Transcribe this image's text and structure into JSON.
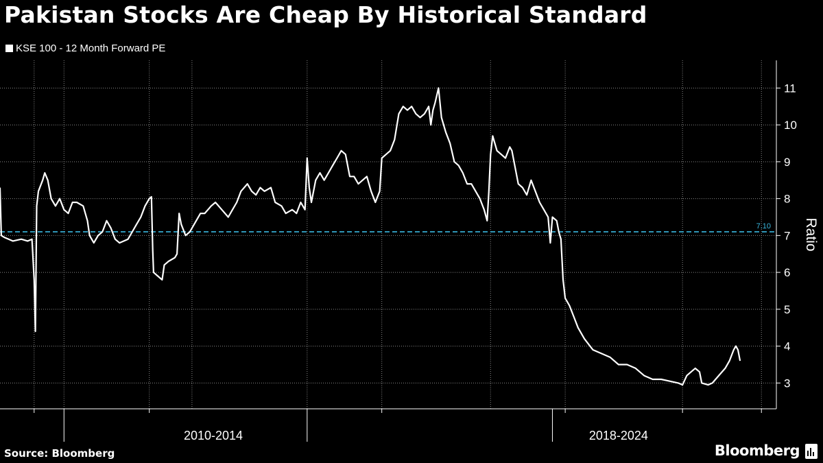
{
  "title": "Pakistan Stocks Are Cheap By Historical Standard",
  "legend_label": "KSE 100 - 12 Month Forward PE",
  "source": "Source: Bloomberg",
  "brand": "Bloomberg",
  "colors": {
    "background": "#000000",
    "line": "#ffffff",
    "reference": "#3ab8e0",
    "grid": "#8a8a8a"
  },
  "chart_data": {
    "type": "line",
    "title": "Pakistan Stocks Are Cheap By Historical Standard",
    "ylabel": "Ratio",
    "ylim": [
      2.3,
      11.75
    ],
    "yticks": [
      3,
      4,
      5,
      6,
      7,
      8,
      9,
      10,
      11
    ],
    "xlim": [
      2006.5,
      2024.7
    ],
    "x_period_labels": [
      {
        "label": "2010-2014",
        "center": 2011.5
      },
      {
        "label": "2018-2024",
        "center": 2021.0
      }
    ],
    "reference_line": {
      "value": 7.1,
      "label": "7.10"
    },
    "series": [
      {
        "name": "KSE 100 - 12 Month Forward PE",
        "points": [
          [
            2006.5,
            8.3
          ],
          [
            2006.53,
            7.0
          ],
          [
            2006.6,
            6.95
          ],
          [
            2006.8,
            6.85
          ],
          [
            2007.0,
            6.9
          ],
          [
            2007.15,
            6.85
          ],
          [
            2007.25,
            6.9
          ],
          [
            2007.3,
            5.8
          ],
          [
            2007.33,
            4.4
          ],
          [
            2007.36,
            7.8
          ],
          [
            2007.4,
            8.2
          ],
          [
            2007.5,
            8.5
          ],
          [
            2007.55,
            8.7
          ],
          [
            2007.62,
            8.5
          ],
          [
            2007.7,
            8.0
          ],
          [
            2007.8,
            7.8
          ],
          [
            2007.9,
            8.0
          ],
          [
            2008.0,
            7.7
          ],
          [
            2008.1,
            7.6
          ],
          [
            2008.2,
            7.9
          ],
          [
            2008.3,
            7.9
          ],
          [
            2008.45,
            7.8
          ],
          [
            2008.55,
            7.4
          ],
          [
            2008.6,
            7.0
          ],
          [
            2008.7,
            6.8
          ],
          [
            2008.8,
            7.0
          ],
          [
            2008.9,
            7.1
          ],
          [
            2009.0,
            7.4
          ],
          [
            2009.1,
            7.2
          ],
          [
            2009.2,
            6.9
          ],
          [
            2009.3,
            6.8
          ],
          [
            2009.5,
            6.9
          ],
          [
            2009.6,
            7.1
          ],
          [
            2009.7,
            7.3
          ],
          [
            2009.8,
            7.5
          ],
          [
            2009.9,
            7.8
          ],
          [
            2010.0,
            8.0
          ],
          [
            2010.05,
            8.05
          ],
          [
            2010.08,
            6.6
          ],
          [
            2010.1,
            6.0
          ],
          [
            2010.2,
            5.9
          ],
          [
            2010.3,
            5.8
          ],
          [
            2010.35,
            6.2
          ],
          [
            2010.45,
            6.3
          ],
          [
            2010.6,
            6.4
          ],
          [
            2010.65,
            6.5
          ],
          [
            2010.7,
            7.6
          ],
          [
            2010.75,
            7.3
          ],
          [
            2010.85,
            7.0
          ],
          [
            2010.95,
            7.1
          ],
          [
            2011.1,
            7.4
          ],
          [
            2011.2,
            7.6
          ],
          [
            2011.3,
            7.6
          ],
          [
            2011.45,
            7.8
          ],
          [
            2011.55,
            7.9
          ],
          [
            2011.7,
            7.7
          ],
          [
            2011.85,
            7.5
          ],
          [
            2011.95,
            7.7
          ],
          [
            2012.05,
            7.9
          ],
          [
            2012.15,
            8.2
          ],
          [
            2012.3,
            8.4
          ],
          [
            2012.4,
            8.2
          ],
          [
            2012.5,
            8.1
          ],
          [
            2012.6,
            8.3
          ],
          [
            2012.7,
            8.2
          ],
          [
            2012.85,
            8.3
          ],
          [
            2012.95,
            7.9
          ],
          [
            2013.1,
            7.8
          ],
          [
            2013.2,
            7.6
          ],
          [
            2013.35,
            7.7
          ],
          [
            2013.45,
            7.6
          ],
          [
            2013.55,
            7.9
          ],
          [
            2013.65,
            7.7
          ],
          [
            2013.7,
            9.1
          ],
          [
            2013.75,
            8.3
          ],
          [
            2013.8,
            7.9
          ],
          [
            2013.9,
            8.5
          ],
          [
            2014.0,
            8.7
          ],
          [
            2014.1,
            8.5
          ],
          [
            2014.2,
            8.7
          ],
          [
            2014.3,
            8.9
          ],
          [
            2014.4,
            9.1
          ],
          [
            2014.5,
            9.3
          ],
          [
            2014.6,
            9.2
          ],
          [
            2014.7,
            8.6
          ],
          [
            2014.8,
            8.6
          ],
          [
            2014.9,
            8.4
          ],
          [
            2015.0,
            8.5
          ],
          [
            2015.1,
            8.6
          ],
          [
            2015.2,
            8.2
          ],
          [
            2015.3,
            7.9
          ],
          [
            2015.4,
            8.2
          ],
          [
            2015.45,
            9.1
          ],
          [
            2015.55,
            9.2
          ],
          [
            2015.65,
            9.3
          ],
          [
            2015.75,
            9.6
          ],
          [
            2015.85,
            10.3
          ],
          [
            2015.95,
            10.5
          ],
          [
            2016.05,
            10.4
          ],
          [
            2016.15,
            10.5
          ],
          [
            2016.25,
            10.3
          ],
          [
            2016.35,
            10.2
          ],
          [
            2016.45,
            10.3
          ],
          [
            2016.55,
            10.5
          ],
          [
            2016.6,
            10.0
          ],
          [
            2016.65,
            10.4
          ],
          [
            2016.7,
            10.6
          ],
          [
            2016.78,
            11.0
          ],
          [
            2016.85,
            10.2
          ],
          [
            2016.95,
            9.8
          ],
          [
            2017.05,
            9.5
          ],
          [
            2017.15,
            9.0
          ],
          [
            2017.25,
            8.9
          ],
          [
            2017.35,
            8.7
          ],
          [
            2017.45,
            8.4
          ],
          [
            2017.55,
            8.4
          ],
          [
            2017.65,
            8.2
          ],
          [
            2017.75,
            8.0
          ],
          [
            2017.85,
            7.7
          ],
          [
            2017.92,
            7.4
          ],
          [
            2017.96,
            8.2
          ],
          [
            2018.0,
            9.2
          ],
          [
            2018.05,
            9.7
          ],
          [
            2018.15,
            9.3
          ],
          [
            2018.25,
            9.2
          ],
          [
            2018.35,
            9.1
          ],
          [
            2018.45,
            9.4
          ],
          [
            2018.5,
            9.3
          ],
          [
            2018.55,
            9.0
          ],
          [
            2018.65,
            8.4
          ],
          [
            2018.75,
            8.3
          ],
          [
            2018.85,
            8.1
          ],
          [
            2018.95,
            8.5
          ],
          [
            2019.05,
            8.2
          ],
          [
            2019.15,
            7.9
          ],
          [
            2019.25,
            7.7
          ],
          [
            2019.35,
            7.5
          ],
          [
            2019.4,
            6.8
          ],
          [
            2019.45,
            7.5
          ],
          [
            2019.55,
            7.4
          ],
          [
            2019.6,
            7.1
          ],
          [
            2019.65,
            6.9
          ],
          [
            2019.7,
            5.8
          ],
          [
            2019.75,
            5.3
          ],
          [
            2019.85,
            5.1
          ],
          [
            2019.95,
            4.8
          ],
          [
            2020.05,
            4.5
          ],
          [
            2020.2,
            4.2
          ],
          [
            2020.4,
            3.9
          ],
          [
            2020.6,
            3.8
          ],
          [
            2020.8,
            3.7
          ],
          [
            2021.0,
            3.5
          ],
          [
            2021.2,
            3.5
          ],
          [
            2021.4,
            3.4
          ],
          [
            2021.6,
            3.2
          ],
          [
            2021.8,
            3.1
          ],
          [
            2022.0,
            3.1
          ],
          [
            2022.2,
            3.05
          ],
          [
            2022.4,
            3.0
          ],
          [
            2022.5,
            2.95
          ],
          [
            2022.6,
            3.2
          ],
          [
            2022.7,
            3.3
          ],
          [
            2022.8,
            3.4
          ],
          [
            2022.9,
            3.3
          ],
          [
            2022.95,
            3.0
          ],
          [
            2023.1,
            2.95
          ],
          [
            2023.2,
            3.0
          ],
          [
            2023.35,
            3.2
          ],
          [
            2023.5,
            3.4
          ],
          [
            2023.6,
            3.6
          ],
          [
            2023.7,
            3.9
          ],
          [
            2023.75,
            4.0
          ],
          [
            2023.8,
            3.9
          ],
          [
            2023.85,
            3.6
          ]
        ]
      }
    ]
  }
}
